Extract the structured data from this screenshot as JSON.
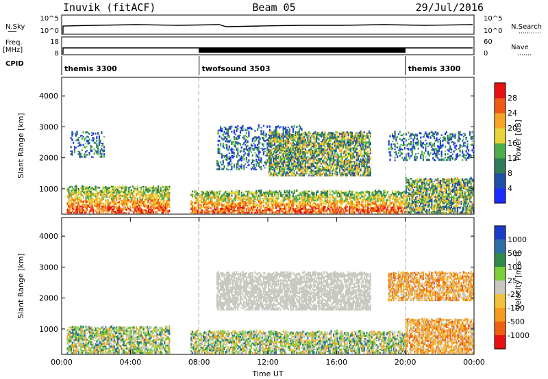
{
  "header": {
    "station": "Inuvik (fitACF)",
    "beam": "Beam 05",
    "date": "29/Jul/2016"
  },
  "top_panels": {
    "nsky_label": "N.Sky",
    "nsky_tick_high": "10^5",
    "nsky_tick_low": "10^0",
    "nsearch_label": "N.Search",
    "nsearch_tick_high": "10^5",
    "nsearch_tick_low": "10^0",
    "freq_label": "Freq.",
    "freq_unit": "[MHz]",
    "freq_tick_high": "18",
    "freq_tick_low": "8",
    "nave_label": "Nave",
    "nave_tick_high": "60",
    "nave_tick_low": "0",
    "cpid_label": "CPID",
    "cpid_segments": [
      {
        "name": "themis 3300",
        "start_hour": 0,
        "end_hour": 8
      },
      {
        "name": "twofsound 3503",
        "start_hour": 8,
        "end_hour": 20
      },
      {
        "name": "themis 3300",
        "start_hour": 20,
        "end_hour": 24
      }
    ]
  },
  "chart_data": [
    {
      "type": "heatmap",
      "title": "",
      "xlabel": "",
      "ylabel": "Slant Range [km]",
      "x_range_hours": [
        0,
        24
      ],
      "ylim": [
        180,
        4600
      ],
      "y_ticks": [
        1000,
        2000,
        3000,
        4000
      ],
      "colorbar": {
        "label": "Power [dB]",
        "ticks": [
          "4",
          "8",
          "12",
          "16",
          "20",
          "24",
          "28"
        ],
        "colors": [
          "#1a2cff",
          "#1f4fa8",
          "#2f7a58",
          "#4caf4a",
          "#e8d43a",
          "#f6a623",
          "#f05a14",
          "#e81010"
        ]
      },
      "regions": [
        {
          "t0": 0.3,
          "t1": 6.3,
          "r0": 200,
          "r1": 1050,
          "level": "high"
        },
        {
          "t0": 7.5,
          "t1": 20,
          "r0": 200,
          "r1": 900,
          "level": "high"
        },
        {
          "t0": 20,
          "t1": 24,
          "r0": 200,
          "r1": 1300,
          "level": "mid"
        },
        {
          "t0": 0.5,
          "t1": 2.5,
          "r0": 2000,
          "r1": 2800,
          "level": "low"
        },
        {
          "t0": 9,
          "t1": 14,
          "r0": 1600,
          "r1": 3000,
          "level": "low"
        },
        {
          "t0": 12,
          "t1": 18,
          "r0": 1400,
          "r1": 2800,
          "level": "mid"
        },
        {
          "t0": 19,
          "t1": 24,
          "r0": 1900,
          "r1": 2800,
          "level": "low"
        }
      ]
    },
    {
      "type": "heatmap",
      "title": "",
      "xlabel": "Time UT",
      "ylabel": "Slant Range [km]",
      "x_range_hours": [
        0,
        24
      ],
      "ylim": [
        180,
        4600
      ],
      "y_ticks": [
        1000,
        2000,
        3000,
        4000
      ],
      "x_ticks": [
        "00:00",
        "04:00",
        "08:00",
        "12:00",
        "16:00",
        "20:00",
        "00:00"
      ],
      "colorbar": {
        "label": "Velocity [m s⁻¹]",
        "ticks": [
          "1000",
          "500",
          "100",
          "25",
          "-25",
          "-100",
          "-500",
          "-1000"
        ],
        "colors": [
          "#1a3cc8",
          "#2f6fa8",
          "#2f8a4a",
          "#7ccf3a",
          "#c8c8c0",
          "#f2c23a",
          "#f59a1c",
          "#f06010",
          "#e81010"
        ]
      },
      "regions": [
        {
          "t0": 0.3,
          "t1": 6.3,
          "r0": 200,
          "r1": 1050,
          "level": "mixed"
        },
        {
          "t0": 7.5,
          "t1": 20,
          "r0": 200,
          "r1": 900,
          "level": "mixed"
        },
        {
          "t0": 20,
          "t1": 24,
          "r0": 200,
          "r1": 1300,
          "level": "neg"
        },
        {
          "t0": 9,
          "t1": 18,
          "r0": 1600,
          "r1": 2800,
          "level": "gray"
        },
        {
          "t0": 19,
          "t1": 24,
          "r0": 1900,
          "r1": 2800,
          "level": "neg"
        }
      ]
    }
  ]
}
